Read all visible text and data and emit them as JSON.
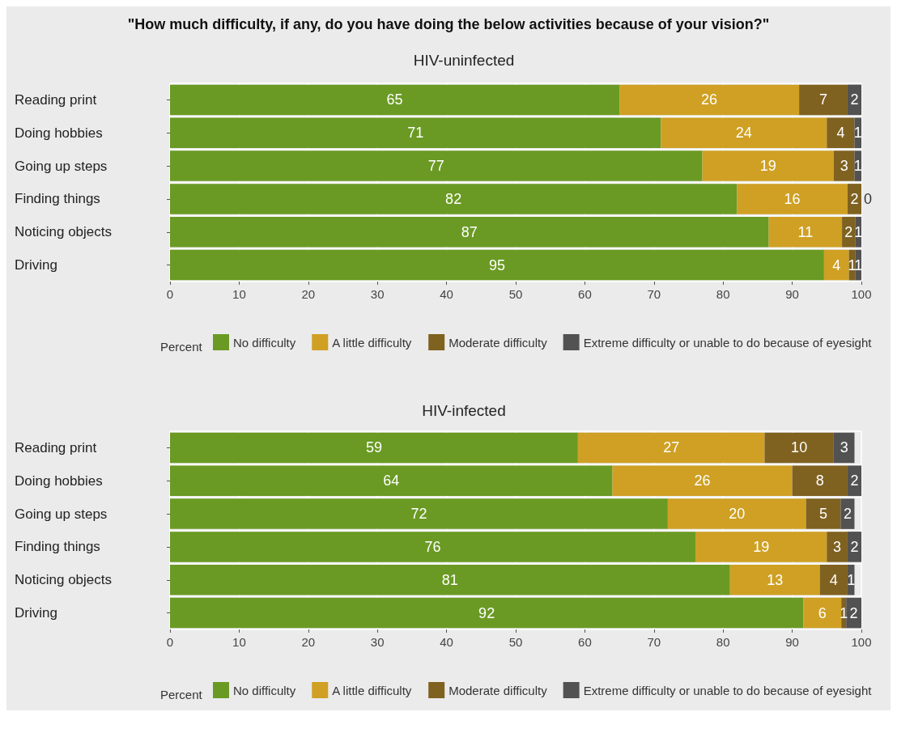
{
  "chart_data": [
    {
      "type": "bar",
      "title": "\"How much difficulty, if any, do you have doing the below activities because of your vision?\"",
      "subtitle": "HIV-uninfected",
      "orientation": "horizontal",
      "stacked": true,
      "categories": [
        "Reading print",
        "Doing hobbies",
        "Going up steps",
        "Finding things",
        "Noticing objects",
        "Driving"
      ],
      "xlim": [
        0,
        100
      ],
      "xticks": [
        0,
        10,
        20,
        30,
        40,
        50,
        60,
        70,
        80,
        90,
        100
      ],
      "grid": true,
      "legend": "bottom",
      "legend_title": "Percent",
      "series": [
        {
          "name": "No difficulty",
          "color": "#6a9a23",
          "values": [
            65,
            71,
            77,
            82,
            86.6,
            94.6
          ],
          "value_labels": [
            "65",
            "71",
            "77",
            "82",
            "87",
            "95"
          ]
        },
        {
          "name": "A little difficulty",
          "color": "#cfa023",
          "values": [
            26,
            24,
            19,
            16,
            10.6,
            3.6
          ],
          "value_labels": [
            "26",
            "24",
            "19",
            "16",
            "11",
            "4"
          ]
        },
        {
          "name": "Moderate difficulty",
          "color": "#7f6120",
          "values": [
            7,
            4,
            3,
            2,
            1.9,
            0.9
          ],
          "value_labels": [
            "7",
            "4",
            "3",
            "2",
            "2",
            "1"
          ]
        },
        {
          "name": "Extreme difficulty or unable to do because of eyesight",
          "color": "#525252",
          "values": [
            2,
            1,
            1,
            0,
            0.9,
            0.9
          ],
          "value_labels": [
            "2",
            "1",
            "1",
            "0",
            "1",
            "1"
          ]
        }
      ]
    },
    {
      "type": "bar",
      "title": "HIV-infected",
      "orientation": "horizontal",
      "stacked": true,
      "categories": [
        "Reading print",
        "Doing hobbies",
        "Going up steps",
        "Finding things",
        "Noticing objects",
        "Driving"
      ],
      "xlim": [
        0,
        100
      ],
      "xticks": [
        0,
        10,
        20,
        30,
        40,
        50,
        60,
        70,
        80,
        90,
        100
      ],
      "grid": true,
      "legend": "bottom",
      "legend_title": "Percent",
      "series": [
        {
          "name": "No difficulty",
          "color": "#6a9a23",
          "values": [
            59,
            64,
            72,
            76,
            81,
            91.6
          ],
          "value_labels": [
            "59",
            "64",
            "72",
            "76",
            "81",
            "92"
          ]
        },
        {
          "name": "A little difficulty",
          "color": "#cfa023",
          "values": [
            27,
            26,
            20,
            19,
            13,
            5.5
          ],
          "value_labels": [
            "27",
            "26",
            "20",
            "19",
            "13",
            "6"
          ]
        },
        {
          "name": "Moderate difficulty",
          "color": "#7f6120",
          "values": [
            10,
            8,
            5,
            3,
            4,
            0.7
          ],
          "value_labels": [
            "10",
            "8",
            "5",
            "3",
            "4",
            "1"
          ]
        },
        {
          "name": "Extreme difficulty or unable to do because of eyesight",
          "color": "#525252",
          "values": [
            3,
            2,
            2,
            2,
            1,
            2.2
          ],
          "value_labels": [
            "3",
            "2",
            "2",
            "2",
            "1",
            "2"
          ]
        }
      ]
    }
  ]
}
